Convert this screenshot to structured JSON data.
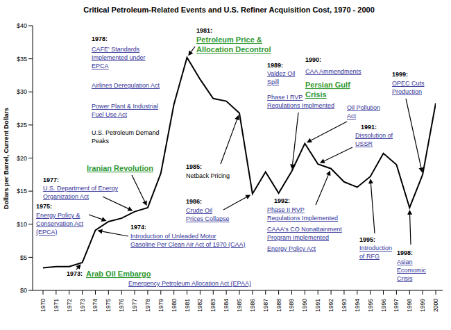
{
  "chart_data": {
    "type": "line",
    "title": "Critical Petroleum-Related Events and U.S. Refiner Acquisition Cost, 1970 - 2000",
    "y_label": "Dollars per Barrel, Current Dollars",
    "x": [
      1970,
      1971,
      1972,
      1973,
      1974,
      1975,
      1976,
      1977,
      1978,
      1979,
      1980,
      1981,
      1982,
      1983,
      1984,
      1985,
      1986,
      1987,
      1988,
      1989,
      1990,
      1991,
      1992,
      1993,
      1994,
      1995,
      1996,
      1997,
      1998,
      1999,
      2000
    ],
    "values": [
      3.4,
      3.6,
      3.6,
      4.2,
      9.1,
      10.4,
      10.9,
      11.9,
      12.5,
      17.7,
      28.1,
      35.2,
      31.9,
      29.0,
      28.6,
      26.8,
      14.6,
      17.9,
      14.7,
      18.0,
      22.2,
      19.1,
      18.4,
      16.4,
      15.6,
      17.2,
      20.7,
      19.0,
      12.5,
      17.5,
      28.3
    ],
    "color": "#000000",
    "xlim": [
      1970,
      2000
    ],
    "xticks": [
      1970,
      1971,
      1972,
      1973,
      1974,
      1975,
      1976,
      1977,
      1978,
      1979,
      1980,
      1981,
      1982,
      1983,
      1984,
      1985,
      1986,
      1987,
      1988,
      1989,
      1990,
      1991,
      1992,
      1993,
      1994,
      1995,
      1996,
      1997,
      1998,
      1999,
      2000
    ],
    "ylim": [
      0,
      40
    ],
    "yticks": [
      {
        "value": 0,
        "label": "$0"
      },
      {
        "value": 5,
        "label": "$5"
      },
      {
        "value": 10,
        "label": "$10"
      },
      {
        "value": 15,
        "label": "$15"
      },
      {
        "value": 20,
        "label": "$20"
      },
      {
        "value": 25,
        "label": "$25"
      },
      {
        "value": 30,
        "label": "$30"
      },
      {
        "value": 35,
        "label": "$35"
      },
      {
        "value": 40,
        "label": "$40"
      }
    ],
    "grid": false,
    "annotations": [
      {
        "label": "1973:",
        "x": 1973,
        "items": [
          {
            "lines": [
              "Arab Oil Embargo"
            ],
            "color": "#339933"
          },
          {
            "lines": [
              "Emergency Petroleum Allocation Act (EPAA)"
            ],
            "color": "#333399"
          }
        ]
      },
      {
        "label": "1974:",
        "x": 1974,
        "items": [
          {
            "lines": [
              "Introduction of Unleaded Motor",
              "Gasoline Per Clean Air Act of 1970 (CAA)"
            ],
            "color": "#333399"
          }
        ]
      },
      {
        "label": "1975:",
        "x": 1975,
        "items": [
          {
            "lines": [
              "Energy Policy &",
              "Conservation Act",
              "(EPCA)"
            ],
            "color": "#333399"
          }
        ]
      },
      {
        "label": "1977:",
        "x": 1977,
        "items": [
          {
            "lines": [
              "U.S. Department of Energy",
              "Organization Act"
            ],
            "color": "#333399"
          }
        ]
      },
      {
        "x": 1978,
        "items": [
          {
            "lines": [
              "Iranian Revolution"
            ],
            "color": "#339933"
          }
        ]
      },
      {
        "label": "1978:",
        "items": [
          {
            "lines": [
              "CAFE' Standards",
              "Implemented under",
              "EPCA"
            ],
            "color": "#333399"
          },
          {
            "lines": [
              "Airlines Deregulation Act"
            ],
            "color": "#333399"
          },
          {
            "lines": [
              "Power Plant & Industrial",
              "Fuel Use Act"
            ],
            "color": "#333399"
          },
          {
            "lines": [
              "U.S. Petroleum Demand",
              "Peaks"
            ],
            "color": "#000000"
          }
        ]
      },
      {
        "label": "1981:",
        "x": 1981,
        "items": [
          {
            "lines": [
              "Petroleum Price &",
              "Allocation Decontrol"
            ],
            "color": "#339933"
          }
        ]
      },
      {
        "label": "1985:",
        "x": 1985,
        "items": [
          {
            "lines": [
              "Netback Pricing"
            ],
            "color": "#000000"
          }
        ]
      },
      {
        "label": "1986:",
        "x": 1986,
        "items": [
          {
            "lines": [
              "Crude Oil",
              "Prices Collapse"
            ],
            "color": "#333399"
          }
        ]
      },
      {
        "label": "1989:",
        "x": 1989,
        "items": [
          {
            "lines": [
              "Valdez Oil",
              "Spill"
            ],
            "color": "#333399"
          },
          {
            "lines": [
              "Phase I RVP",
              "Regulations Implmented"
            ],
            "color": "#333399"
          }
        ]
      },
      {
        "label": "1990:",
        "x": 1990,
        "items": [
          {
            "lines": [
              "CAA Ammendments"
            ],
            "color": "#333399"
          },
          {
            "lines": [
              "Persian Gulf",
              "Crisis"
            ],
            "color": "#339933"
          },
          {
            "lines": [
              "Oil Pollution",
              "Act"
            ],
            "color": "#333399"
          }
        ]
      },
      {
        "label": "1991:",
        "x": 1991,
        "items": [
          {
            "lines": [
              "Dissolution of",
              "USSR"
            ],
            "color": "#333399"
          }
        ]
      },
      {
        "label": "1992:",
        "x": 1992,
        "items": [
          {
            "lines": [
              "Phase II RVP",
              "Regulations Implemented"
            ],
            "color": "#333399"
          },
          {
            "lines": [
              "CAAA's CO Nonattainment",
              "Program Implemented"
            ],
            "color": "#333399"
          },
          {
            "lines": [
              "Energy Policy Act"
            ],
            "color": "#333399"
          }
        ]
      },
      {
        "label": "1995:",
        "x": 1995,
        "items": [
          {
            "lines": [
              "Introduction",
              "of RFG"
            ],
            "color": "#333399"
          }
        ]
      },
      {
        "label": "1998:",
        "x": 1998,
        "items": [
          {
            "lines": [
              "Asian",
              "Ecomomic",
              "Crisis"
            ],
            "color": "#333399"
          }
        ]
      },
      {
        "label": "1999:",
        "x": 1999,
        "items": [
          {
            "lines": [
              "OPEC Cuts",
              "Production"
            ],
            "color": "#333399"
          }
        ]
      }
    ]
  }
}
